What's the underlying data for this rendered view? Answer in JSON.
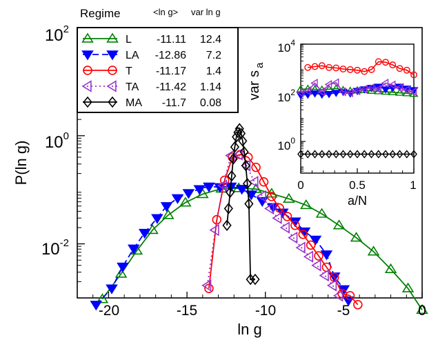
{
  "chart_data": [
    {
      "type": "line",
      "xlabel": "ln g",
      "ylabel": "P(ln g)",
      "yscale": "log",
      "xlim": [
        -22,
        0
      ],
      "ylim": [
        0.001,
        100
      ],
      "x_ticks": [
        "-20",
        "-15",
        "-10",
        "-5",
        "0"
      ],
      "y_ticks": [
        {
          "base": "10",
          "exp": "2",
          "value": 100
        },
        {
          "base": "10",
          "exp": "0",
          "value": 1
        },
        {
          "base": "10",
          "exp": "-2",
          "value": 0.01
        }
      ],
      "legend": {
        "position": "top-left",
        "header": {
          "regime": "Regime",
          "mean": "<ln g>",
          "var": "var ln g"
        }
      },
      "series": [
        {
          "name": "L",
          "mean": "-11.11",
          "var": "12.4",
          "color": "#008000",
          "marker": "triangle-up",
          "line": "solid",
          "points": [
            [
              -20.4,
              0.00095
            ],
            [
              -19.2,
              0.0028
            ],
            [
              -18.2,
              0.0075
            ],
            [
              -17.2,
              0.018
            ],
            [
              -16.2,
              0.034
            ],
            [
              -15.1,
              0.058
            ],
            [
              -14.0,
              0.083
            ],
            [
              -12.8,
              0.105
            ],
            [
              -11.7,
              0.107
            ],
            [
              -10.6,
              0.103
            ],
            [
              -9.6,
              0.085
            ],
            [
              -8.5,
              0.068
            ],
            [
              -7.4,
              0.052
            ],
            [
              -6.4,
              0.036
            ],
            [
              -5.3,
              0.022
            ],
            [
              -4.2,
              0.013
            ],
            [
              -3.1,
              0.0072
            ],
            [
              -2.0,
              0.0034
            ],
            [
              -0.9,
              0.0015
            ],
            [
              0.0,
              0.0006
            ]
          ]
        },
        {
          "name": "LA",
          "mean": "-12.86",
          "var": "7.2",
          "color": "#0000ff",
          "marker": "triangle-down",
          "line": "dashed",
          "points": [
            [
              -20.8,
              0.00075
            ],
            [
              -19.8,
              0.0015
            ],
            [
              -19.1,
              0.0038
            ],
            [
              -18.4,
              0.0082
            ],
            [
              -17.7,
              0.016
            ],
            [
              -16.9,
              0.03
            ],
            [
              -16.3,
              0.05
            ],
            [
              -15.6,
              0.07
            ],
            [
              -14.9,
              0.087
            ],
            [
              -14.2,
              0.103
            ],
            [
              -13.6,
              0.115
            ],
            [
              -12.9,
              0.112
            ],
            [
              -12.2,
              0.115
            ],
            [
              -11.5,
              0.104
            ],
            [
              -10.9,
              0.082
            ],
            [
              -10.2,
              0.062
            ],
            [
              -9.5,
              0.048
            ],
            [
              -8.9,
              0.038
            ],
            [
              -8.1,
              0.026
            ],
            [
              -7.5,
              0.017
            ],
            [
              -6.8,
              0.012
            ],
            [
              -6.1,
              0.0064
            ],
            [
              -5.6,
              0.0025
            ],
            [
              -5.0,
              0.00145
            ],
            [
              -4.7,
              0.0009
            ]
          ]
        },
        {
          "name": "T",
          "mean": "-11.17",
          "var": "1.4",
          "color": "#ff0000",
          "marker": "circle",
          "line": "solid",
          "points": [
            [
              -13.6,
              0.0015
            ],
            [
              -13.1,
              0.028
            ],
            [
              -12.6,
              0.15
            ],
            [
              -12.1,
              0.4
            ],
            [
              -11.6,
              0.45
            ],
            [
              -11.1,
              0.4
            ],
            [
              -10.6,
              0.26
            ],
            [
              -10.1,
              0.14
            ],
            [
              -9.6,
              0.075
            ],
            [
              -9.1,
              0.046
            ],
            [
              -8.6,
              0.032
            ],
            [
              -8.1,
              0.022
            ],
            [
              -7.6,
              0.015
            ],
            [
              -7.1,
              0.0095
            ],
            [
              -6.6,
              0.006
            ],
            [
              -6.1,
              0.0037
            ],
            [
              -5.6,
              0.0024
            ],
            [
              -5.1,
              0.0012
            ],
            [
              -4.6,
              0.0011
            ],
            [
              -4.1,
              0.00075
            ]
          ]
        },
        {
          "name": "TA",
          "mean": "-11.42",
          "var": "1.14",
          "color": "#9933cc",
          "marker": "triangle-left",
          "line": "dotted",
          "points": [
            [
              -13.7,
              0.0017
            ],
            [
              -13.2,
              0.018
            ],
            [
              -12.7,
              0.12
            ],
            [
              -12.2,
              0.43
            ],
            [
              -11.7,
              0.45
            ],
            [
              -11.2,
              0.28
            ],
            [
              -10.7,
              0.14
            ],
            [
              -10.2,
              0.076
            ],
            [
              -9.7,
              0.045
            ],
            [
              -9.2,
              0.03
            ],
            [
              -8.7,
              0.02
            ],
            [
              -8.2,
              0.013
            ],
            [
              -7.7,
              0.0085
            ],
            [
              -7.2,
              0.0058
            ],
            [
              -6.7,
              0.004
            ],
            [
              -6.2,
              0.0026
            ],
            [
              -5.7,
              0.0017
            ],
            [
              -5.3,
              0.0011
            ]
          ]
        },
        {
          "name": "MA",
          "mean": "-11.7",
          "var": "0.08",
          "color": "#000000",
          "marker": "diamond",
          "line": "solid",
          "points": [
            [
              -12.45,
              0.022
            ],
            [
              -12.35,
              0.045
            ],
            [
              -12.25,
              0.09
            ],
            [
              -12.15,
              0.18
            ],
            [
              -12.05,
              0.37
            ],
            [
              -11.95,
              0.62
            ],
            [
              -11.85,
              0.95
            ],
            [
              -11.75,
              1.15
            ],
            [
              -11.65,
              1.35
            ],
            [
              -11.55,
              1.1
            ],
            [
              -11.45,
              0.8
            ],
            [
              -11.35,
              0.5
            ],
            [
              -11.25,
              0.28
            ],
            [
              -11.15,
              0.13
            ],
            [
              -11.05,
              0.055
            ],
            [
              -10.95,
              0.0022
            ],
            [
              -10.65,
              0.0022
            ]
          ]
        }
      ]
    },
    {
      "type": "line",
      "xlabel": "a/N",
      "ylabel": "var s_a",
      "ylabel_main": "var s",
      "ylabel_sub": "a",
      "yscale": "log",
      "xlim": [
        0,
        1
      ],
      "ylim": [
        0.05,
        10000
      ],
      "x_ticks": [
        "0",
        "0.5",
        "1"
      ],
      "y_ticks": [
        {
          "base": "10",
          "exp": "4",
          "value": 10000
        },
        {
          "base": "10",
          "exp": "2",
          "value": 100
        },
        {
          "base": "10",
          "exp": "0",
          "value": 1
        }
      ],
      "series": [
        {
          "name": "L",
          "color": "#008000",
          "marker": "triangle-up",
          "points": [
            [
              0.0,
              140
            ],
            [
              0.0625,
              145
            ],
            [
              0.125,
              138
            ],
            [
              0.1875,
              135
            ],
            [
              0.25,
              140
            ],
            [
              0.3125,
              150
            ],
            [
              0.375,
              130
            ],
            [
              0.4375,
              120
            ],
            [
              0.5,
              125
            ],
            [
              0.5625,
              130
            ],
            [
              0.625,
              120
            ],
            [
              0.6875,
              115
            ],
            [
              0.75,
              110
            ],
            [
              0.8125,
              105
            ],
            [
              0.875,
              100
            ],
            [
              0.9375,
              95
            ],
            [
              1.0,
              90
            ]
          ]
        },
        {
          "name": "LA",
          "color": "#0000ff",
          "marker": "triangle-down",
          "points": [
            [
              0.0,
              80
            ],
            [
              0.0625,
              85
            ],
            [
              0.125,
              95
            ],
            [
              0.1875,
              85
            ],
            [
              0.25,
              90
            ],
            [
              0.3125,
              100
            ],
            [
              0.375,
              110
            ],
            [
              0.4375,
              95
            ],
            [
              0.5,
              120
            ],
            [
              0.5625,
              140
            ],
            [
              0.625,
              160
            ],
            [
              0.6875,
              180
            ],
            [
              0.75,
              140
            ],
            [
              0.8125,
              160
            ],
            [
              0.875,
              180
            ],
            [
              0.9375,
              150
            ],
            [
              1.0,
              130
            ]
          ]
        },
        {
          "name": "T",
          "color": "#ff0000",
          "marker": "circle",
          "points": [
            [
              0.0625,
              1100
            ],
            [
              0.125,
              1200
            ],
            [
              0.1875,
              1300
            ],
            [
              0.25,
              1100
            ],
            [
              0.3125,
              1050
            ],
            [
              0.375,
              950
            ],
            [
              0.4375,
              900
            ],
            [
              0.5,
              850
            ],
            [
              0.5625,
              750
            ],
            [
              0.625,
              900
            ],
            [
              0.6875,
              1900
            ],
            [
              0.75,
              1800
            ],
            [
              0.8125,
              1400
            ],
            [
              0.875,
              1000
            ],
            [
              0.9375,
              850
            ],
            [
              1.0,
              550
            ]
          ]
        },
        {
          "name": "TA",
          "color": "#9933cc",
          "marker": "triangle-left",
          "points": [
            [
              0.0,
              100
            ],
            [
              0.0625,
              120
            ],
            [
              0.125,
              250
            ],
            [
              0.1875,
              110
            ],
            [
              0.25,
              220
            ],
            [
              0.3125,
              260
            ],
            [
              0.375,
              110
            ],
            [
              0.4375,
              100
            ],
            [
              0.5,
              120
            ],
            [
              0.5625,
              140
            ],
            [
              0.625,
              160
            ],
            [
              0.6875,
              140
            ],
            [
              0.75,
              250
            ],
            [
              0.8125,
              210
            ],
            [
              0.875,
              160
            ],
            [
              0.9375,
              130
            ],
            [
              1.0,
              110
            ]
          ]
        },
        {
          "name": "MA",
          "color": "#000000",
          "marker": "diamond",
          "points": [
            [
              0.0,
              0.3
            ],
            [
              0.0625,
              0.3
            ],
            [
              0.125,
              0.3
            ],
            [
              0.1875,
              0.3
            ],
            [
              0.25,
              0.3
            ],
            [
              0.3125,
              0.3
            ],
            [
              0.375,
              0.3
            ],
            [
              0.4375,
              0.3
            ],
            [
              0.5,
              0.3
            ],
            [
              0.5625,
              0.3
            ],
            [
              0.625,
              0.3
            ],
            [
              0.6875,
              0.3
            ],
            [
              0.75,
              0.3
            ],
            [
              0.8125,
              0.3
            ],
            [
              0.875,
              0.3
            ],
            [
              0.9375,
              0.3
            ],
            [
              1.0,
              0.3
            ]
          ]
        }
      ]
    }
  ]
}
